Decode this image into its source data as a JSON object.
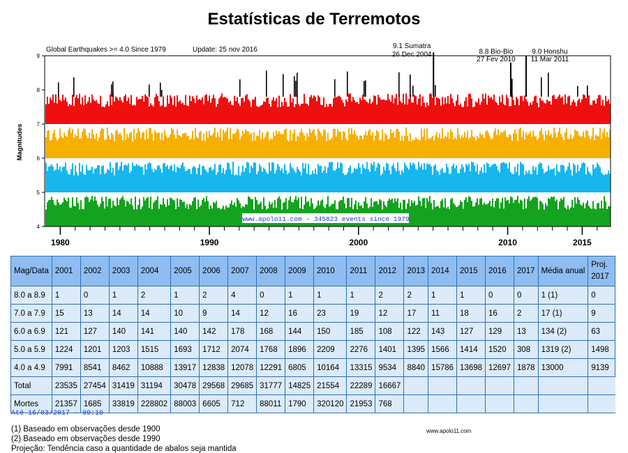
{
  "title": "Estatísticas de Terremotos",
  "chart_data": {
    "type": "bar",
    "ylabel": "Magnitudes",
    "ylim": [
      4,
      9
    ],
    "y_ticks": [
      "4",
      "5",
      "6",
      "7",
      "8",
      "9"
    ],
    "x_ticks": [
      "1980",
      "1990",
      "2000",
      "2010",
      "2015"
    ],
    "xlim": [
      1979,
      2016.9
    ],
    "subtitle": "Global Earthquakes >= 4.0 Since 1979",
    "update": "Update: 25 nov 2016",
    "event_count_label": "www.apolo11.com - 345823 events since 1979",
    "annotations": [
      {
        "line1": "9.1 Sumatra",
        "line2": "26 Dec 2004",
        "year": 2004.98,
        "magnitude": 9.1
      },
      {
        "line1": "8.8 Bio-Bio",
        "line2": "27 Fev 2010",
        "year": 2010.16,
        "magnitude": 8.8
      },
      {
        "line1": "9.0 Honshu",
        "line2": "11 Mar 2011",
        "year": 2011.19,
        "magnitude": 9.0
      }
    ],
    "bands": [
      {
        "range": [
          4.0,
          4.9
        ],
        "color": "#14a31f"
      },
      {
        "range": [
          5.0,
          5.9
        ],
        "color": "#16b7ef"
      },
      {
        "range": [
          6.0,
          6.9
        ],
        "color": "#f7b000"
      },
      {
        "range": [
          7.0,
          7.9
        ],
        "color": "#ef0f0f"
      },
      {
        "range": [
          8.0,
          9.1
        ],
        "color": "#000000"
      }
    ]
  },
  "table": {
    "headers": [
      "Mag/Data",
      "2001",
      "2002",
      "2003",
      "2004",
      "2005",
      "2006",
      "2007",
      "2008",
      "2009",
      "2010",
      "2011",
      "2012",
      "2013",
      "2014",
      "2015",
      "2016",
      "2017",
      "Média anual",
      "Proj. 2017"
    ],
    "rows": [
      [
        "8.0 a 8.9",
        "1",
        "0",
        "1",
        "2",
        "1",
        "2",
        "4",
        "0",
        "1",
        "1",
        "1",
        "2",
        "2",
        "1",
        "1",
        "0",
        "0",
        "1 (1)",
        "0"
      ],
      [
        "7.0 a 7.9",
        "15",
        "13",
        "14",
        "14",
        "10",
        "9",
        "14",
        "12",
        "16",
        "23",
        "19",
        "12",
        "17",
        "11",
        "18",
        "16",
        "2",
        "17 (1)",
        "9"
      ],
      [
        "6.0 a 6.9",
        "121",
        "127",
        "140",
        "141",
        "140",
        "142",
        "178",
        "168",
        "144",
        "150",
        "185",
        "108",
        "122",
        "143",
        "127",
        "129",
        "13",
        "134 (2)",
        "63"
      ],
      [
        "5.0 a 5.9",
        "1224",
        "1201",
        "1203",
        "1515",
        "1693",
        "1712",
        "2074",
        "1768",
        "1896",
        "2209",
        "2276",
        "1401",
        "1395",
        "1566",
        "1414",
        "1520",
        "308",
        "1319 (2)",
        "1498"
      ],
      [
        "4.0 a 4.9",
        "7991",
        "8541",
        "8462",
        "10888",
        "13917",
        "12838",
        "12078",
        "12291",
        "6805",
        "10164",
        "13315",
        "9534",
        "8840",
        "15786",
        "13698",
        "12697",
        "1878",
        "13000",
        "9139"
      ],
      [
        "Total",
        "23535",
        "27454",
        "31419",
        "31194",
        "30478",
        "29568",
        "29685",
        "31777",
        "14825",
        "21554",
        "22289",
        "16667",
        "",
        "",
        "",
        "",
        "",
        "",
        ""
      ],
      [
        "Mortes",
        "21357",
        "1685",
        "33819",
        "228802",
        "88003",
        "6605",
        "712",
        "88011",
        "1790",
        "320120",
        "21953",
        "768",
        "",
        "",
        "",
        "",
        "",
        "",
        ""
      ]
    ]
  },
  "update_stamp": "Até 16/03/2017 - 09:10",
  "notes": [
    "(1) Baseado em observações desde 1900",
    "(2) Baseado em observações desde 1990",
    "Projeção: Tendência caso a quantidade de abalos seja mantida"
  ],
  "site_credit": "www.apolo11.com"
}
